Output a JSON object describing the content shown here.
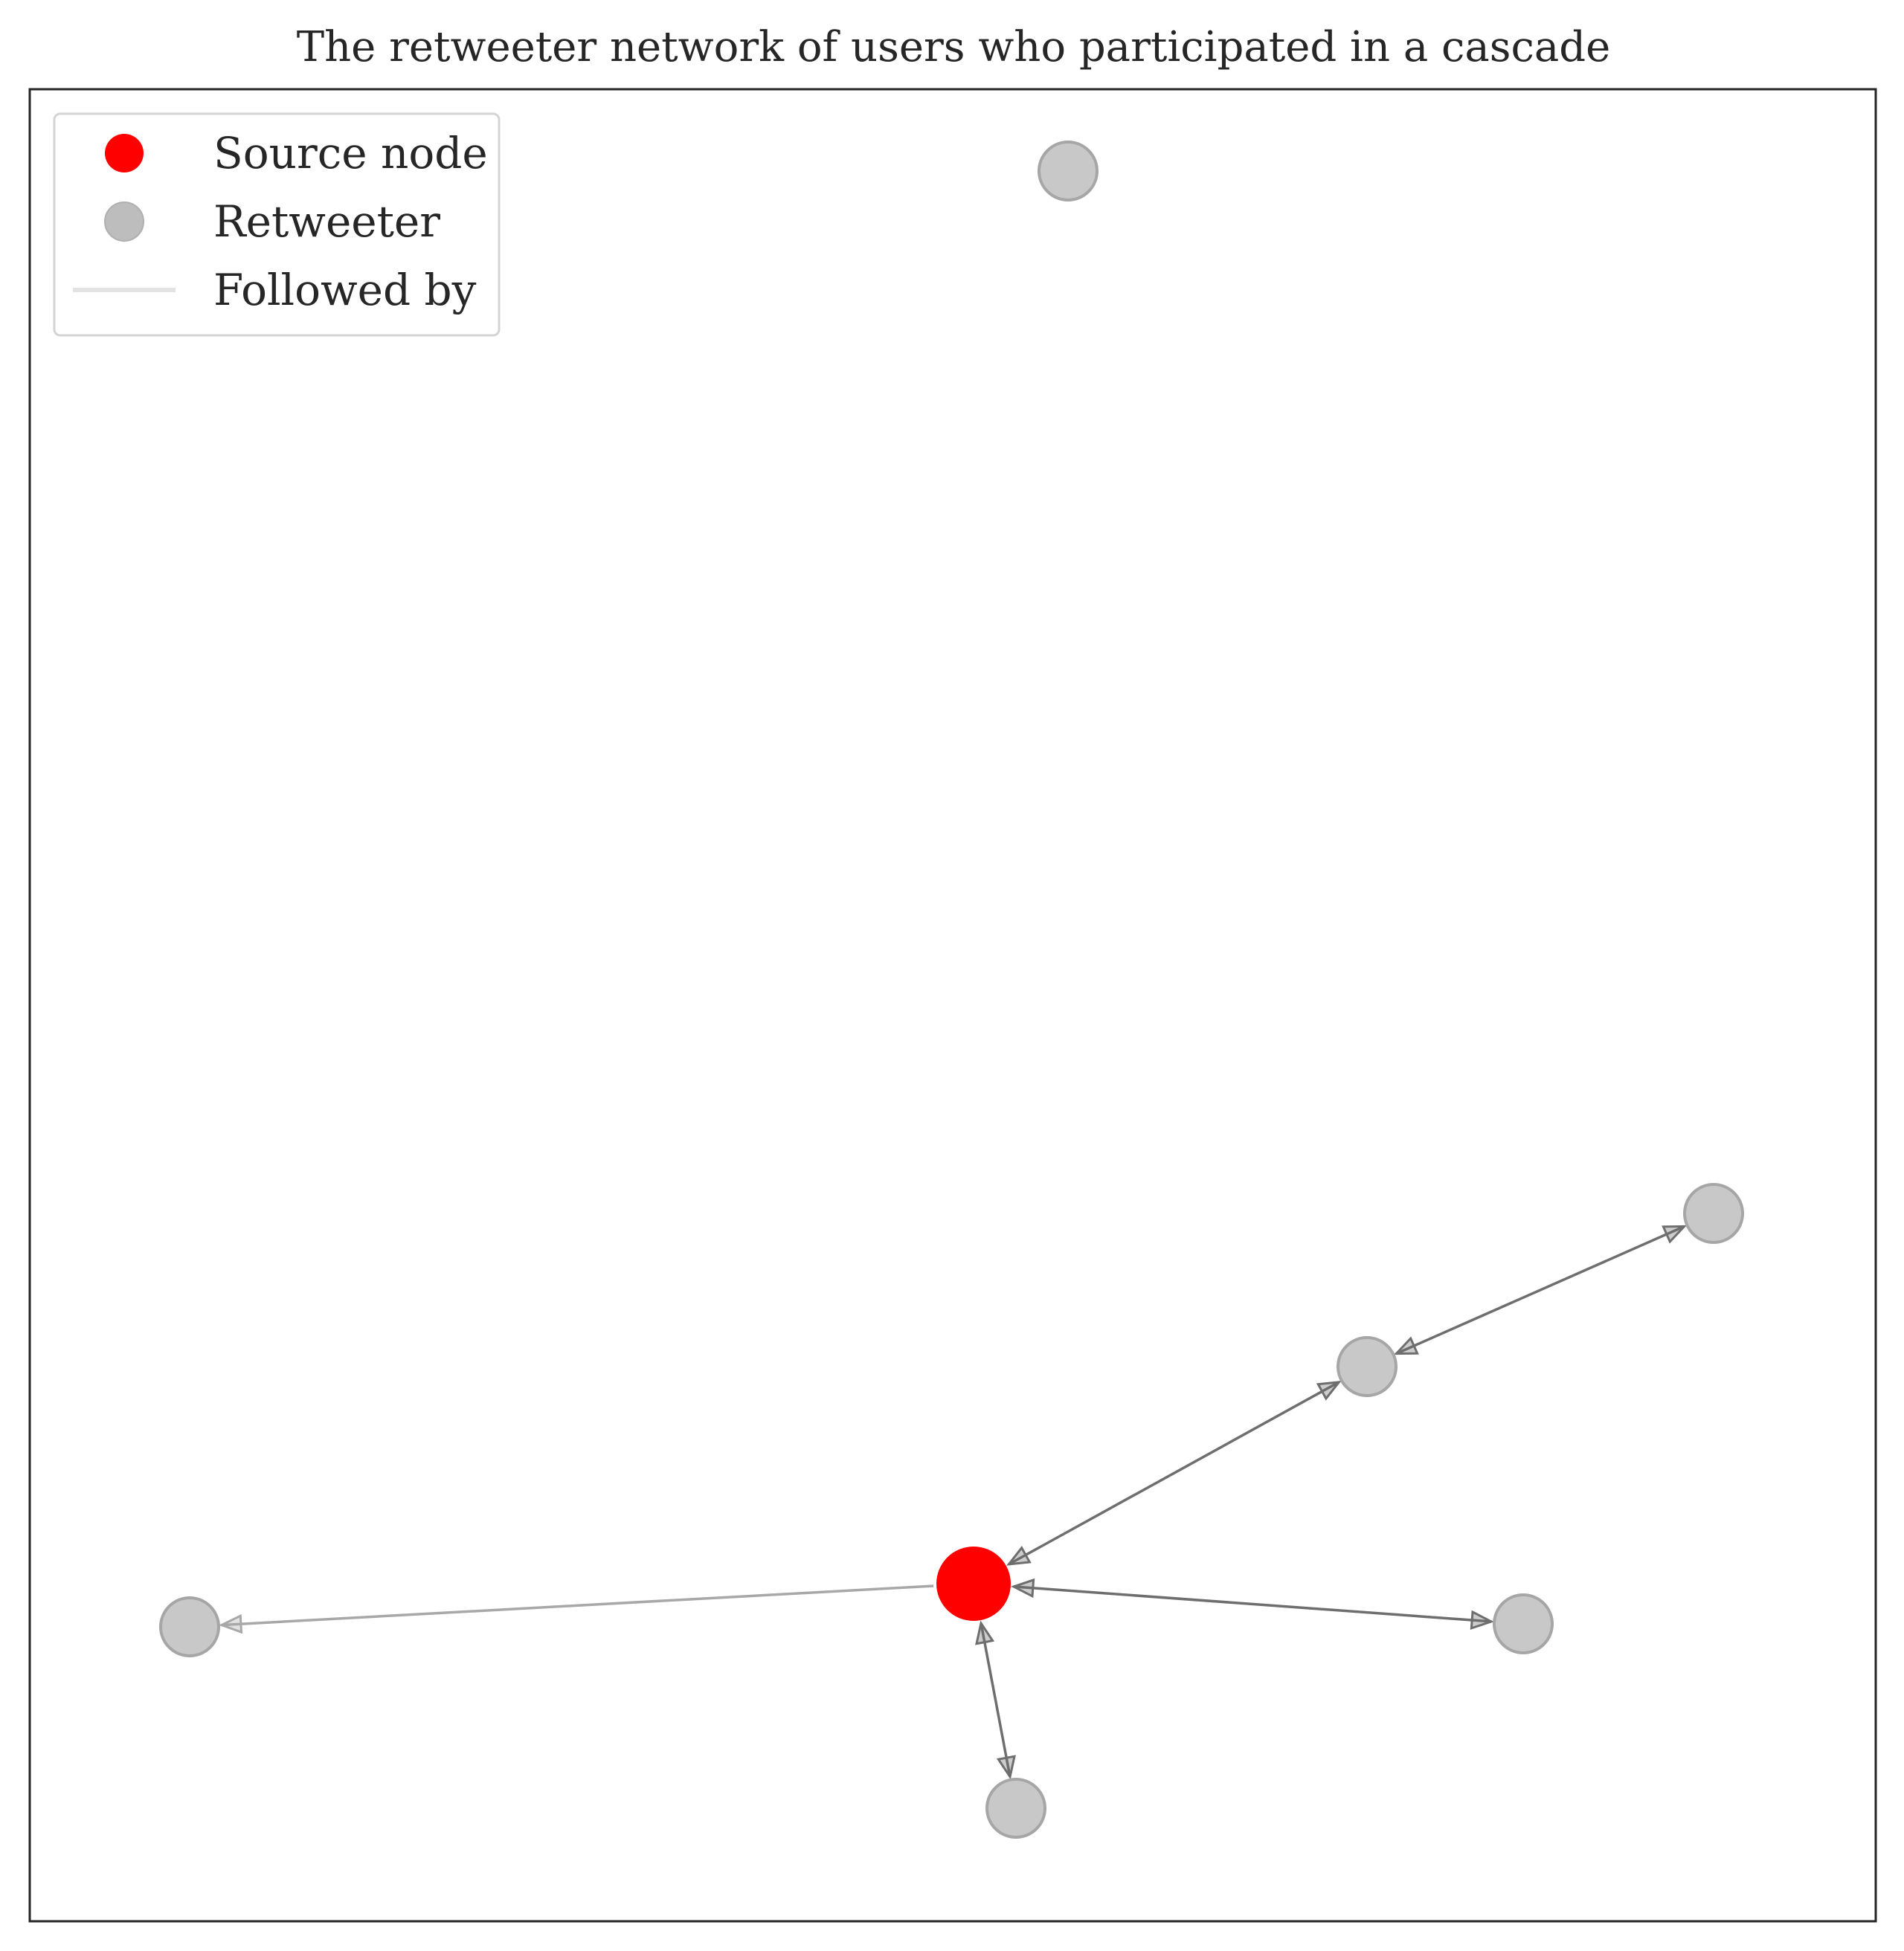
{
  "title": "The retweeter network of users who participated in a cascade",
  "colors": {
    "source": "#ff0000",
    "retweeter_fill": "#c8c8c8",
    "retweeter_stroke": "#a6a6a6",
    "edge_dark": "#6e6e6e",
    "edge_light": "#a8a8a8",
    "legend_line": "#e3e3e3",
    "frame": "#262626"
  },
  "legend": {
    "items": [
      {
        "label": "Source node",
        "kind": "source"
      },
      {
        "label": "Retweeter",
        "kind": "retweeter"
      },
      {
        "label": "Followed by",
        "kind": "edge"
      }
    ]
  },
  "diagram": {
    "nodes": [
      {
        "id": "source",
        "type": "source"
      },
      {
        "id": "r-top",
        "type": "retweeter"
      },
      {
        "id": "r-far-right",
        "type": "retweeter"
      },
      {
        "id": "r-mid-right",
        "type": "retweeter"
      },
      {
        "id": "r-right",
        "type": "retweeter"
      },
      {
        "id": "r-bottom",
        "type": "retweeter"
      },
      {
        "id": "r-left",
        "type": "retweeter"
      }
    ],
    "edges": [
      {
        "from": "source",
        "to": "r-mid-right",
        "bidirectional": true,
        "style": "dark"
      },
      {
        "from": "r-mid-right",
        "to": "r-far-right",
        "bidirectional": true,
        "style": "dark"
      },
      {
        "from": "source",
        "to": "r-right",
        "bidirectional": true,
        "style": "dark"
      },
      {
        "from": "source",
        "to": "r-bottom",
        "bidirectional": true,
        "style": "dark"
      },
      {
        "from": "source",
        "to": "r-left",
        "bidirectional": false,
        "style": "light"
      }
    ]
  }
}
